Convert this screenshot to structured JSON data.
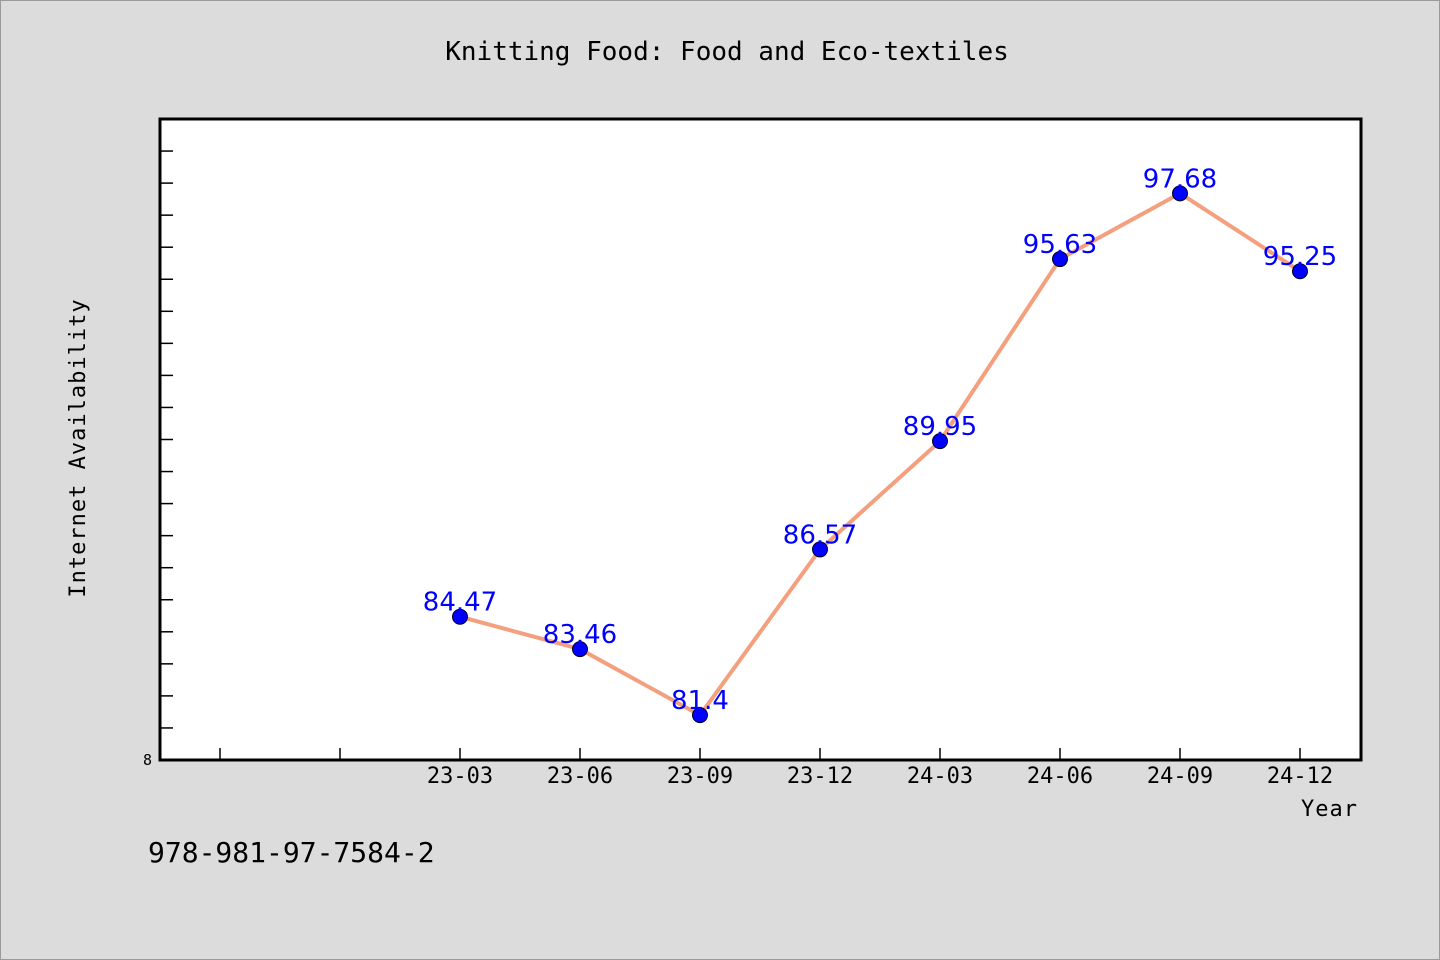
{
  "chart_data": {
    "type": "line",
    "title": "Knitting Food: Food and Eco-textiles",
    "xlabel": "Year",
    "ylabel": "Internet Availability",
    "categories": [
      "23-03",
      "23-06",
      "23-09",
      "23-12",
      "24-03",
      "24-06",
      "24-09",
      "24-12"
    ],
    "series": [
      {
        "values": [
          84.47,
          83.46,
          81.4,
          86.57,
          89.95,
          95.63,
          97.68,
          95.25
        ],
        "labels": [
          "84.47",
          "83.46",
          "81.4",
          "86.57",
          "89.95",
          "95.63",
          "97.68",
          "95.25"
        ]
      }
    ],
    "ylim": [
      80,
      100
    ],
    "y_min_label": "8",
    "line_color": "#f4a07e",
    "marker_color": "#0000ff",
    "label_color": "#0000ff",
    "grid": false
  },
  "footer": {
    "isbn": "978-981-97-7584-2"
  }
}
